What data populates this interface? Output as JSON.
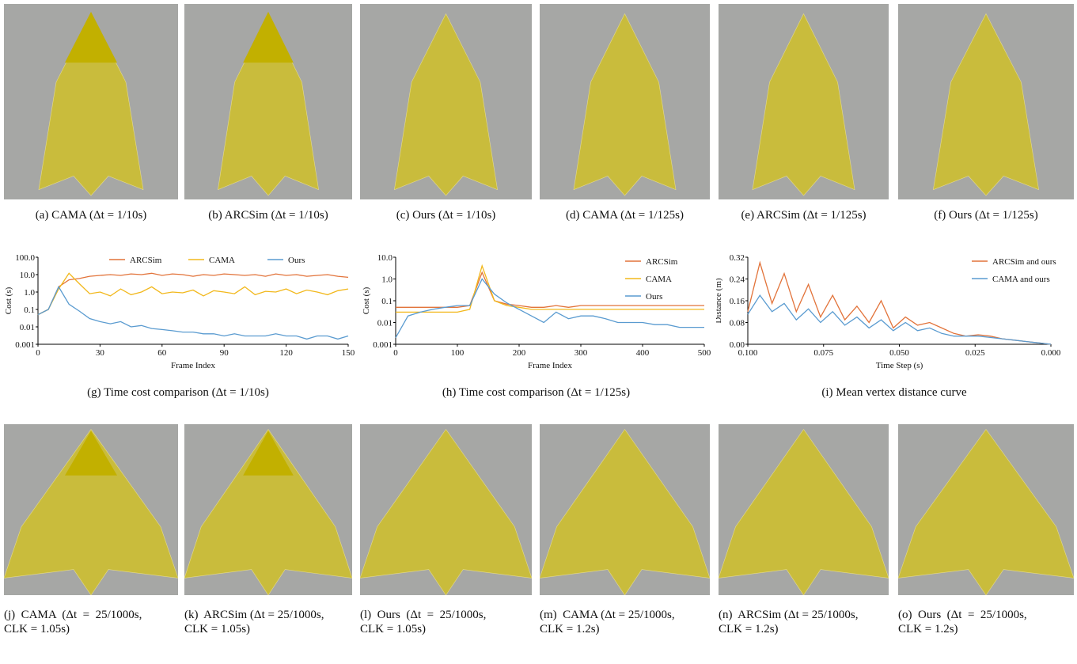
{
  "figures_top": [
    {
      "label": "(a)  CAMA (Δt = 1/10s)"
    },
    {
      "label": "(b)  ARCSim (Δt = 1/10s)"
    },
    {
      "label": "(c)  Ours (Δt = 1/10s)"
    },
    {
      "label": "(d)  CAMA (Δt = 1/125s)"
    },
    {
      "label": "(e)  ARCSim (Δt = 1/125s)"
    },
    {
      "label": "(f)  Ours (Δt = 1/125s)"
    }
  ],
  "figures_bottom": [
    {
      "lines": [
        "(j)  CAMA  (Δt  =  25/1000s,",
        "CLK = 1.05s)"
      ]
    },
    {
      "lines": [
        "(k)  ARCSim (Δt = 25/1000s,",
        "CLK = 1.05s)"
      ]
    },
    {
      "lines": [
        "(l)  Ours  (Δt  =  25/1000s,",
        "CLK = 1.05s)"
      ]
    },
    {
      "lines": [
        "(m)  CAMA (Δt = 25/1000s,",
        "CLK = 1.2s)"
      ]
    },
    {
      "lines": [
        "(n)  ARCSim (Δt = 25/1000s,",
        "CLK = 1.2s)"
      ]
    },
    {
      "lines": [
        "(o)  Ours  (Δt  =  25/1000s,",
        "CLK = 1.2s)"
      ]
    }
  ],
  "chart_data": [
    {
      "type": "line",
      "caption": "(g)  Time cost comparison (Δt = 1/10s)",
      "xlabel": "Frame Index",
      "ylabel": "Cost (s)",
      "yscale": "log",
      "legend": "top",
      "x": [
        0,
        5,
        10,
        15,
        20,
        25,
        30,
        35,
        40,
        45,
        50,
        55,
        60,
        65,
        70,
        75,
        80,
        85,
        90,
        95,
        100,
        105,
        110,
        115,
        120,
        125,
        130,
        135,
        140,
        145,
        150
      ],
      "xlim": [
        0,
        150
      ],
      "xticks": [
        0,
        30,
        60,
        90,
        120,
        150
      ],
      "ylim": [
        0.001,
        100
      ],
      "yticks": [
        {
          "value": 100,
          "label": "100.0"
        },
        {
          "value": 10,
          "label": "10.0"
        },
        {
          "value": 1,
          "label": "1.0"
        },
        0.1,
        0.01,
        0.001
      ],
      "series": [
        {
          "name": "ARCSim",
          "color": "#e2733a",
          "values": [
            0.05,
            0.1,
            2,
            5,
            6,
            8,
            9,
            10,
            9,
            11,
            10,
            12,
            9,
            11,
            10,
            8,
            10,
            9,
            11,
            10,
            9,
            10,
            8,
            11,
            9,
            10,
            8,
            9,
            10,
            8,
            7
          ]
        },
        {
          "name": "CAMA",
          "color": "#f2b81c",
          "values": [
            0.05,
            0.1,
            1.5,
            12,
            3,
            0.8,
            1,
            0.6,
            1.5,
            0.7,
            1,
            2,
            0.8,
            1,
            0.9,
            1.3,
            0.6,
            1.2,
            1,
            0.8,
            2,
            0.7,
            1.1,
            1,
            1.5,
            0.8,
            1.3,
            1,
            0.7,
            1.2,
            1.5
          ]
        },
        {
          "name": "Ours",
          "color": "#5a9bd0",
          "values": [
            0.05,
            0.1,
            2,
            0.2,
            0.08,
            0.03,
            0.02,
            0.015,
            0.02,
            0.01,
            0.012,
            0.008,
            0.007,
            0.006,
            0.005,
            0.005,
            0.004,
            0.004,
            0.003,
            0.004,
            0.003,
            0.003,
            0.003,
            0.004,
            0.003,
            0.003,
            0.002,
            0.003,
            0.003,
            0.002,
            0.003
          ]
        }
      ]
    },
    {
      "type": "line",
      "caption": "(h)  Time cost comparison (Δt = 1/125s)",
      "xlabel": "Frame Index",
      "ylabel": "Cost (s)",
      "yscale": "log",
      "legend": "upper-right",
      "x": [
        0,
        20,
        40,
        60,
        80,
        100,
        120,
        140,
        160,
        180,
        200,
        220,
        240,
        260,
        280,
        300,
        320,
        340,
        360,
        380,
        400,
        420,
        440,
        460,
        480,
        500
      ],
      "xlim": [
        0,
        500
      ],
      "xticks": [
        0,
        100,
        200,
        300,
        400,
        500
      ],
      "ylim": [
        0.001,
        10
      ],
      "yticks": [
        {
          "value": 10,
          "label": "10.0"
        },
        {
          "value": 1,
          "label": "1.0"
        },
        0.1,
        0.01,
        0.001
      ],
      "series": [
        {
          "name": "ARCSim",
          "color": "#e2733a",
          "values": [
            0.05,
            0.05,
            0.05,
            0.05,
            0.05,
            0.05,
            0.06,
            2,
            0.1,
            0.07,
            0.06,
            0.05,
            0.05,
            0.06,
            0.05,
            0.06,
            0.06,
            0.06,
            0.06,
            0.06,
            0.06,
            0.06,
            0.06,
            0.06,
            0.06,
            0.06
          ]
        },
        {
          "name": "CAMA",
          "color": "#f2b81c",
          "values": [
            0.03,
            0.03,
            0.03,
            0.03,
            0.03,
            0.03,
            0.04,
            4,
            0.1,
            0.06,
            0.05,
            0.04,
            0.04,
            0.04,
            0.04,
            0.04,
            0.04,
            0.04,
            0.04,
            0.04,
            0.04,
            0.04,
            0.04,
            0.04,
            0.04,
            0.04
          ]
        },
        {
          "name": "Ours",
          "color": "#5a9bd0",
          "values": [
            0.002,
            0.02,
            0.03,
            0.04,
            0.05,
            0.06,
            0.06,
            1,
            0.2,
            0.08,
            0.04,
            0.02,
            0.01,
            0.03,
            0.015,
            0.02,
            0.02,
            0.015,
            0.01,
            0.01,
            0.01,
            0.008,
            0.008,
            0.006,
            0.006,
            0.006
          ]
        }
      ]
    },
    {
      "type": "line",
      "caption": "(i)  Mean vertex distance curve",
      "xlabel": "Time Step (s)",
      "ylabel": "Distance (m)",
      "legend": "upper-right",
      "x": [
        0.1,
        0.096,
        0.092,
        0.088,
        0.084,
        0.08,
        0.076,
        0.072,
        0.068,
        0.064,
        0.06,
        0.056,
        0.052,
        0.048,
        0.044,
        0.04,
        0.036,
        0.032,
        0.028,
        0.024,
        0.02,
        0.016,
        0.012,
        0.008,
        0.004,
        0
      ],
      "xlim": [
        0.1,
        0
      ],
      "xticks": [
        {
          "value": 0.1,
          "label": "0.100"
        },
        0.075,
        {
          "value": 0.05,
          "label": "0.050"
        },
        0.025,
        {
          "value": 0,
          "label": "0.000"
        }
      ],
      "ylim": [
        0,
        0.32
      ],
      "yticks": [
        0.32,
        0.24,
        0.16,
        0.08,
        {
          "value": 0,
          "label": "0.00"
        }
      ],
      "series": [
        {
          "name": "ARCSim and ours",
          "color": "#e2733a",
          "values": [
            0.12,
            0.3,
            0.15,
            0.26,
            0.12,
            0.22,
            0.1,
            0.18,
            0.09,
            0.14,
            0.08,
            0.16,
            0.06,
            0.1,
            0.07,
            0.08,
            0.06,
            0.04,
            0.03,
            0.035,
            0.03,
            0.02,
            0.015,
            0.01,
            0.005,
            0
          ]
        },
        {
          "name": "CAMA and ours",
          "color": "#5a9bd0",
          "values": [
            0.11,
            0.18,
            0.12,
            0.15,
            0.09,
            0.13,
            0.08,
            0.12,
            0.07,
            0.1,
            0.06,
            0.09,
            0.05,
            0.08,
            0.05,
            0.06,
            0.04,
            0.03,
            0.03,
            0.03,
            0.025,
            0.02,
            0.015,
            0.01,
            0.005,
            0
          ]
        }
      ]
    }
  ]
}
